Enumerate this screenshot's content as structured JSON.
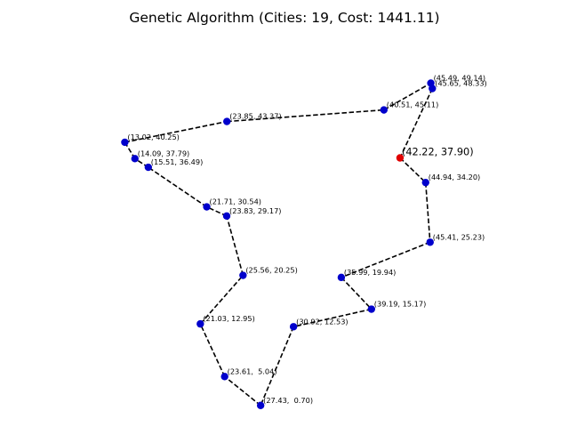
{
  "chart_data": {
    "type": "scatter",
    "title": "Genetic Algorithm (Cities: 19, Cost: 1441.11)",
    "xlabel": "",
    "ylabel": "",
    "axes_visible": false,
    "grid": false,
    "colors": {
      "city": "#0000cc",
      "start": "#e00000",
      "route": "#000000"
    },
    "start_city": {
      "x": 42.22,
      "y": 37.9,
      "label": "(42.22, 37.90)"
    },
    "cities": [
      {
        "x": 45.49,
        "y": 49.14,
        "label": "(45.49, 49.14)"
      },
      {
        "x": 45.65,
        "y": 48.33,
        "label": "(45.65, 48.33)"
      },
      {
        "x": 40.51,
        "y": 45.11,
        "label": "(40.51, 45.11)"
      },
      {
        "x": 23.85,
        "y": 43.37,
        "label": "(23.85, 43.37)"
      },
      {
        "x": 13.02,
        "y": 40.25,
        "label": "(13.02, 40.25)"
      },
      {
        "x": 14.09,
        "y": 37.79,
        "label": "(14.09, 37.79)"
      },
      {
        "x": 15.51,
        "y": 36.49,
        "label": "(15.51, 36.49)"
      },
      {
        "x": 44.94,
        "y": 34.2,
        "label": "(44.94, 34.20)"
      },
      {
        "x": 21.71,
        "y": 30.54,
        "label": "(21.71, 30.54)"
      },
      {
        "x": 23.83,
        "y": 29.17,
        "label": "(23.83, 29.17)"
      },
      {
        "x": 45.41,
        "y": 25.23,
        "label": "(45.41, 25.23)"
      },
      {
        "x": 25.56,
        "y": 20.25,
        "label": "(25.56, 20.25)"
      },
      {
        "x": 35.99,
        "y": 19.94,
        "label": "(35.99, 19.94)"
      },
      {
        "x": 39.19,
        "y": 15.17,
        "label": "(39.19, 15.17)"
      },
      {
        "x": 21.03,
        "y": 12.95,
        "label": "(21.03, 12.95)"
      },
      {
        "x": 30.92,
        "y": 12.53,
        "label": "(30.92, 12.53)"
      },
      {
        "x": 23.61,
        "y": 5.04,
        "label": "(23.61,  5.04)"
      },
      {
        "x": 27.43,
        "y": 0.7,
        "label": "(27.43,  0.70)"
      }
    ],
    "route": [
      [
        42.22,
        37.9
      ],
      [
        44.94,
        34.2
      ],
      [
        45.41,
        25.23
      ],
      [
        35.99,
        19.94
      ],
      [
        39.19,
        15.17
      ],
      [
        30.92,
        12.53
      ],
      [
        27.43,
        0.7
      ],
      [
        23.61,
        5.04
      ],
      [
        21.03,
        12.95
      ],
      [
        25.56,
        20.25
      ],
      [
        23.83,
        29.17
      ],
      [
        21.71,
        30.54
      ],
      [
        15.51,
        36.49
      ],
      [
        14.09,
        37.79
      ],
      [
        13.02,
        40.25
      ],
      [
        23.85,
        43.37
      ],
      [
        40.51,
        45.11
      ],
      [
        45.49,
        49.14
      ],
      [
        45.65,
        48.33
      ],
      [
        42.22,
        37.9
      ]
    ]
  }
}
